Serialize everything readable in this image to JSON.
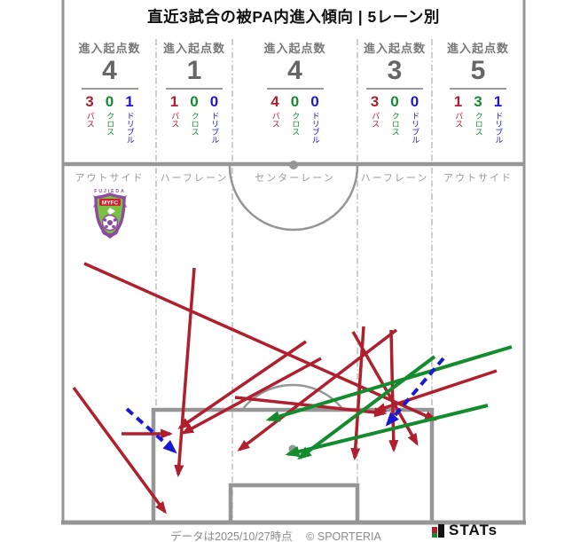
{
  "title": "直近3試合の被PA内進入傾向 | 5レーン別",
  "header": {
    "columns": [
      {
        "label": "進入起点数",
        "total": "4",
        "pass": "3",
        "cross": "0",
        "dribble": "1"
      },
      {
        "label": "進入起点数",
        "total": "1",
        "pass": "1",
        "cross": "0",
        "dribble": "0"
      },
      {
        "label": "進入起点数",
        "total": "4",
        "pass": "4",
        "cross": "0",
        "dribble": "0"
      },
      {
        "label": "進入起点数",
        "total": "3",
        "pass": "3",
        "cross": "0",
        "dribble": "0"
      },
      {
        "label": "進入起点数",
        "total": "5",
        "pass": "1",
        "cross": "3",
        "dribble": "1"
      }
    ],
    "legend": {
      "pass": "パス",
      "cross": "クロス",
      "dribble": "ドリブル"
    }
  },
  "lanes": [
    "アウトサイド",
    "ハーフレーン",
    "センターレーン",
    "ハーフレーン",
    "アウトサイド"
  ],
  "team_logo": {
    "top_text": "FUJIEDA",
    "name": "MYFC"
  },
  "footer": {
    "note": "データは2025/10/27時点",
    "copyright": "© SPORTERIA",
    "brand": "STATs"
  },
  "colors": {
    "pass": "#b01f2e",
    "cross": "#148c2d",
    "dribble": "#1a18d0",
    "pitch": "#969696",
    "lane_dash": "#b3b3b3"
  },
  "chart_data": {
    "type": "table",
    "title": "直近3試合の被PA内進入傾向 | 5レーン別",
    "categories": [
      "アウトサイド",
      "ハーフレーン",
      "センターレーン",
      "ハーフレーン",
      "アウトサイド"
    ],
    "series": [
      {
        "name": "進入起点数",
        "values": [
          4,
          1,
          4,
          3,
          5
        ]
      },
      {
        "name": "パス",
        "values": [
          3,
          1,
          4,
          3,
          1
        ]
      },
      {
        "name": "クロス",
        "values": [
          0,
          0,
          0,
          0,
          3
        ]
      },
      {
        "name": "ドリブル",
        "values": [
          1,
          0,
          0,
          0,
          1
        ]
      }
    ],
    "arrows": [
      {
        "type": "pass",
        "from": [
          95,
          297
        ],
        "to": [
          490,
          473
        ]
      },
      {
        "type": "pass",
        "from": [
          83,
          437
        ],
        "to": [
          186,
          577
        ]
      },
      {
        "type": "pass",
        "from": [
          137,
          489
        ],
        "to": [
          192,
          489
        ]
      },
      {
        "type": "pass",
        "from": [
          219,
          302
        ],
        "to": [
          201,
          535
        ]
      },
      {
        "type": "pass",
        "from": [
          345,
          385
        ],
        "to": [
          203,
          482
        ]
      },
      {
        "type": "pass",
        "from": [
          362,
          404
        ],
        "to": [
          207,
          488
        ]
      },
      {
        "type": "pass",
        "from": [
          398,
          374
        ],
        "to": [
          470,
          500
        ]
      },
      {
        "type": "pass",
        "from": [
          265,
          448
        ],
        "to": [
          433,
          466
        ]
      },
      {
        "type": "pass",
        "from": [
          447,
          372
        ],
        "to": [
          270,
          507
        ]
      },
      {
        "type": "pass",
        "from": [
          410,
          368
        ],
        "to": [
          400,
          516
        ]
      },
      {
        "type": "pass",
        "from": [
          441,
          372
        ],
        "to": [
          444,
          507
        ]
      },
      {
        "type": "pass",
        "from": [
          560,
          418
        ],
        "to": [
          424,
          463
        ]
      },
      {
        "type": "cross",
        "from": [
          577,
          391
        ],
        "to": [
          303,
          473
        ]
      },
      {
        "type": "cross",
        "from": [
          550,
          457
        ],
        "to": [
          325,
          512
        ]
      },
      {
        "type": "cross",
        "from": [
          490,
          402
        ],
        "to": [
          338,
          516
        ]
      },
      {
        "type": "dribble",
        "from": [
          143,
          461
        ],
        "to": [
          197,
          509
        ]
      },
      {
        "type": "dribble",
        "from": [
          500,
          404
        ],
        "to": [
          437,
          478
        ]
      }
    ]
  }
}
